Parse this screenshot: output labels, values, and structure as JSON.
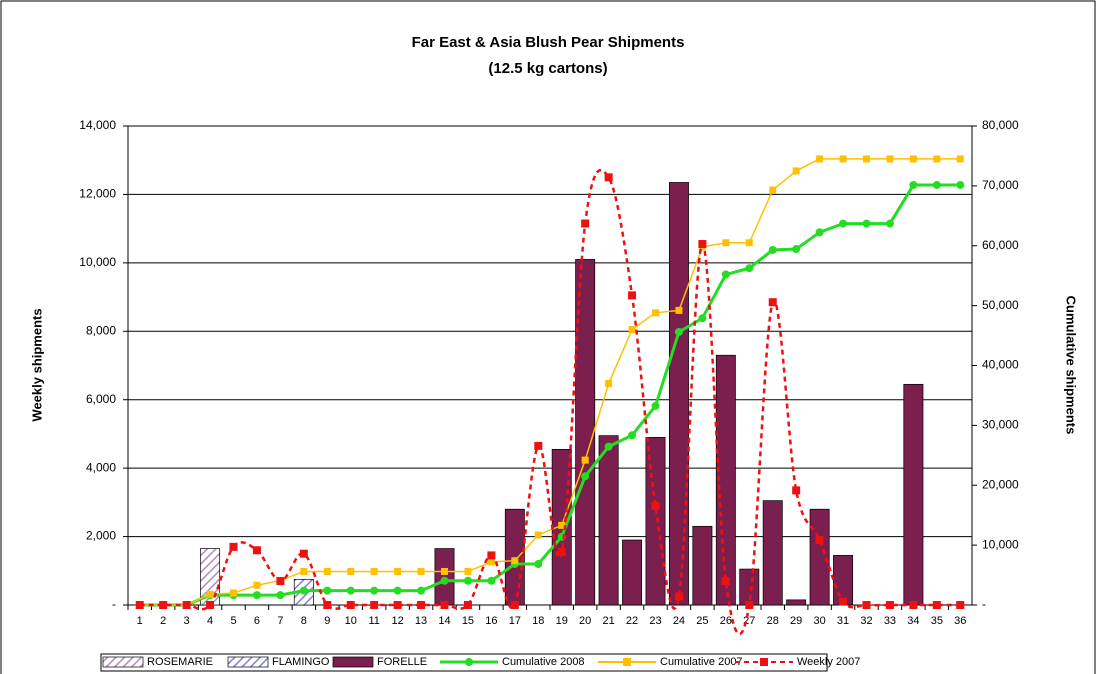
{
  "chart_data": {
    "type": "combo",
    "title": "Far East & Asia Blush Pear Shipments",
    "subtitle": "(12.5 kg cartons)",
    "y_label": "Weekly shipments",
    "y2_label": "Cumulative shipments",
    "categories": [
      "1",
      "2",
      "3",
      "4",
      "5",
      "6",
      "7",
      "8",
      "9",
      "10",
      "11",
      "12",
      "13",
      "14",
      "15",
      "16",
      "17",
      "18",
      "19",
      "20",
      "21",
      "22",
      "23",
      "24",
      "25",
      "26",
      "27",
      "28",
      "29",
      "30",
      "31",
      "32",
      "33",
      "34",
      "35",
      "36"
    ],
    "ylim": [
      0,
      14000
    ],
    "yticks": [
      {
        "value": 0,
        "label": "-"
      },
      {
        "value": 2000,
        "label": "2,000"
      },
      {
        "value": 4000,
        "label": "4,000"
      },
      {
        "value": 6000,
        "label": "6,000"
      },
      {
        "value": 8000,
        "label": "8,000"
      },
      {
        "value": 10000,
        "label": "10,000"
      },
      {
        "value": 12000,
        "label": "12,000"
      },
      {
        "value": 14000,
        "label": "14,000"
      }
    ],
    "y2lim": [
      0,
      80000
    ],
    "y2ticks": [
      {
        "value": 0,
        "label": "-"
      },
      {
        "value": 10000,
        "label": "10,000"
      },
      {
        "value": 20000,
        "label": "20,000"
      },
      {
        "value": 30000,
        "label": "30,000"
      },
      {
        "value": 40000,
        "label": "40,000"
      },
      {
        "value": 50000,
        "label": "50,000"
      },
      {
        "value": 60000,
        "label": "60,000"
      },
      {
        "value": 70000,
        "label": "70,000"
      },
      {
        "value": 80000,
        "label": "80,000"
      }
    ],
    "grid": true,
    "legend": "bottom",
    "series": [
      {
        "name": "ROSEMARIE",
        "type": "bar",
        "pattern": "hatch",
        "color": "#b090b8",
        "values": [
          0,
          0,
          0,
          1650,
          0,
          0,
          0,
          0,
          0,
          0,
          0,
          0,
          0,
          0,
          0,
          0,
          0,
          0,
          0,
          0,
          0,
          0,
          0,
          0,
          0,
          0,
          0,
          0,
          0,
          0,
          0,
          0,
          0,
          0,
          0,
          0
        ]
      },
      {
        "name": "FLAMINGO",
        "type": "bar",
        "pattern": "hatch",
        "color": "#8080d0",
        "values": [
          0,
          0,
          0,
          0,
          0,
          0,
          0,
          750,
          0,
          0,
          0,
          0,
          0,
          0,
          0,
          0,
          0,
          0,
          0,
          0,
          0,
          0,
          0,
          0,
          0,
          0,
          0,
          0,
          0,
          0,
          0,
          0,
          0,
          0,
          0,
          0
        ]
      },
      {
        "name": "FORELLE",
        "type": "bar",
        "color": "#7b1f4e",
        "values": [
          0,
          0,
          0,
          0,
          0,
          0,
          0,
          0,
          0,
          0,
          0,
          0,
          0,
          1650,
          0,
          0,
          2800,
          0,
          4550,
          10100,
          4950,
          1900,
          4900,
          12350,
          2300,
          7300,
          1050,
          3050,
          150,
          2800,
          1450,
          0,
          0,
          6450,
          0,
          0
        ]
      },
      {
        "name": "Cumulative 2008",
        "type": "line",
        "axis": "y2",
        "color": "#22dd22",
        "marker": "circle",
        "values": [
          0,
          0,
          0,
          1650,
          1650,
          1650,
          1650,
          2400,
          2400,
          2400,
          2400,
          2400,
          2400,
          4050,
          4050,
          4050,
          6850,
          6850,
          11400,
          21500,
          26450,
          28350,
          33250,
          45600,
          47900,
          55200,
          56250,
          59300,
          59450,
          62250,
          63700,
          63700,
          63700,
          70150,
          70150,
          70150
        ]
      },
      {
        "name": "Cumulative 2007",
        "type": "line",
        "axis": "y2",
        "color": "#ffc000",
        "marker": "square",
        "values": [
          0,
          0,
          0,
          1800,
          2000,
          3300,
          4100,
          5600,
          5600,
          5600,
          5600,
          5600,
          5600,
          5600,
          5600,
          7200,
          7400,
          11700,
          13300,
          24200,
          37000,
          46000,
          48800,
          49200,
          59800,
          60500,
          60500,
          69300,
          72500,
          74500,
          74500,
          74500,
          74500,
          74500,
          74500,
          74500
        ]
      },
      {
        "name": "Weekly 2007",
        "type": "line",
        "dashed": true,
        "smooth": true,
        "color": "#ee1111",
        "marker": "square",
        "values": [
          0,
          0,
          0,
          0,
          1700,
          1600,
          700,
          1500,
          0,
          0,
          0,
          0,
          0,
          0,
          0,
          1450,
          0,
          4650,
          1550,
          11150,
          12500,
          9050,
          2900,
          250,
          10550,
          700,
          0,
          8850,
          3350,
          1900,
          100,
          0,
          0,
          0,
          0,
          0
        ]
      }
    ]
  }
}
